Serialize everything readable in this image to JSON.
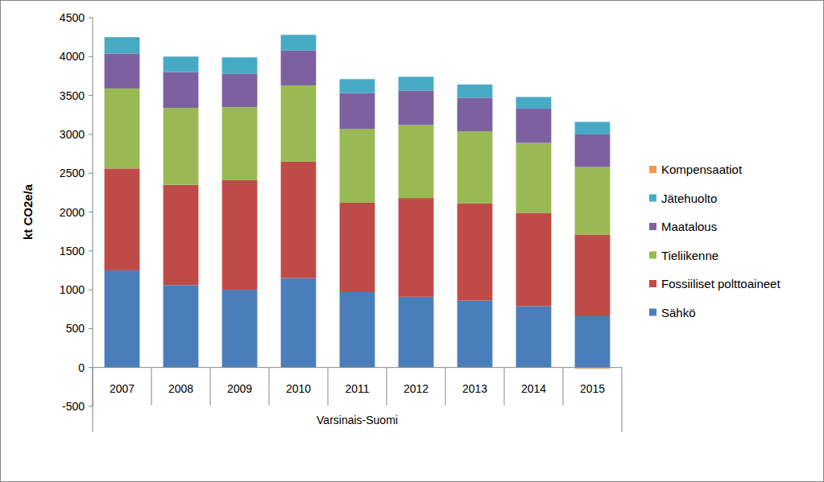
{
  "chart_data": {
    "type": "bar",
    "stacked": true,
    "grid": false,
    "legend": "right",
    "y_label": "kt CO2e/a",
    "x_label": "Varsinais-Suomi",
    "categories": [
      "2007",
      "2008",
      "2009",
      "2010",
      "2011",
      "2012",
      "2013",
      "2014",
      "2015"
    ],
    "ylim": [
      -500,
      4500
    ],
    "yticks": [
      -500,
      0,
      500,
      1000,
      1500,
      2000,
      2500,
      3000,
      3500,
      4000,
      4500
    ],
    "series": [
      {
        "name": "Sähkö",
        "color": "#4a7ebb",
        "values": [
          1250,
          1060,
          1000,
          1150,
          970,
          910,
          860,
          790,
          660
        ]
      },
      {
        "name": "Fossiiliset polttoaineet",
        "color": "#be4b48",
        "values": [
          1310,
          1290,
          1410,
          1500,
          1150,
          1270,
          1250,
          1200,
          1050
        ]
      },
      {
        "name": "Tieliikenne",
        "color": "#98b954",
        "values": [
          1030,
          990,
          940,
          980,
          950,
          940,
          930,
          900,
          870
        ]
      },
      {
        "name": "Maatalous",
        "color": "#7d60a0",
        "values": [
          450,
          460,
          430,
          450,
          460,
          440,
          430,
          440,
          420
        ]
      },
      {
        "name": "Jätehuolto",
        "color": "#46aac5",
        "values": [
          210,
          200,
          210,
          200,
          180,
          180,
          170,
          150,
          160
        ]
      },
      {
        "name": "Kompensaatiot",
        "color": "#f79646",
        "values": [
          0,
          0,
          0,
          0,
          0,
          0,
          0,
          0,
          -15
        ]
      }
    ]
  }
}
